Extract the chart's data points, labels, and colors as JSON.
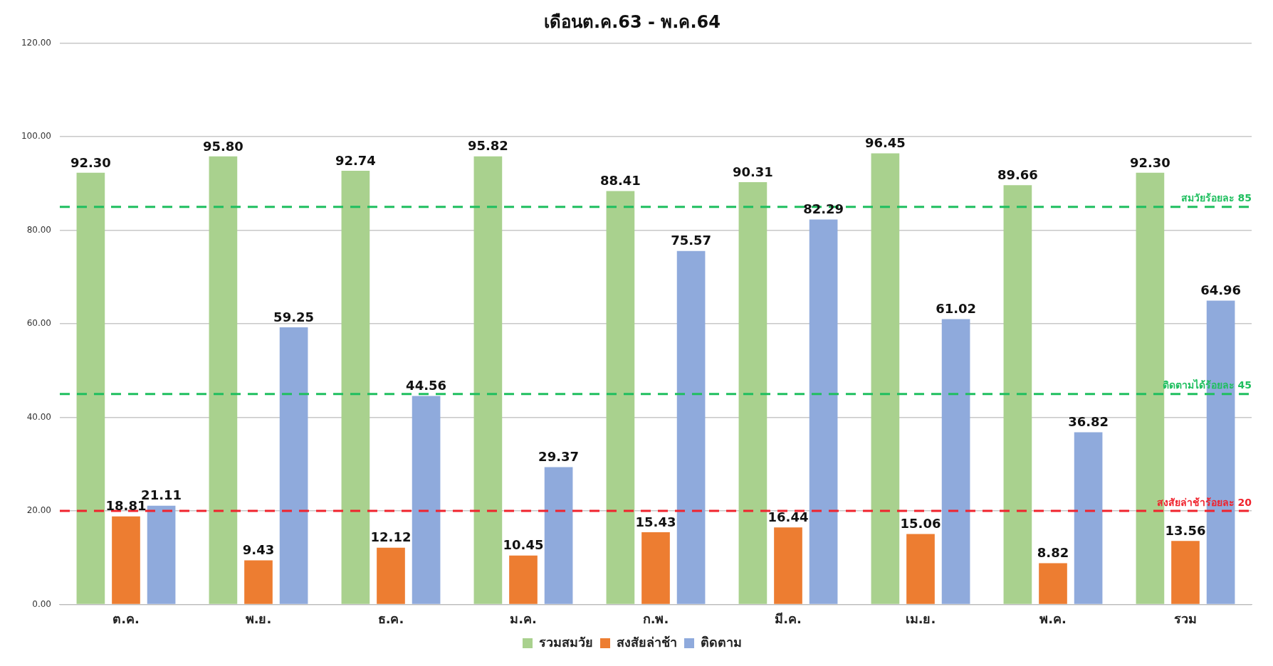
{
  "chart_data": {
    "type": "bar",
    "title": "เดือนต.ค.63 - พ.ค.64",
    "categories": [
      "ต.ค.",
      "พ.ย.",
      "ธ.ค.",
      "ม.ค.",
      "ก.พ.",
      "มี.ค.",
      "เม.ย.",
      "พ.ค.",
      "รวม"
    ],
    "series": [
      {
        "name": "รวมสมวัย",
        "color": "#a9d18e",
        "values": [
          92.3,
          95.8,
          92.74,
          95.82,
          88.41,
          90.31,
          96.45,
          89.66,
          92.3
        ],
        "value_labels": [
          "92.30",
          "95.80",
          "92.74",
          "95.82",
          "88.41",
          "90.31",
          "96.45",
          "89.66",
          "92.30"
        ]
      },
      {
        "name": "สงสัยล่าช้า",
        "color": "#ed7d31",
        "values": [
          18.81,
          9.43,
          12.12,
          10.45,
          15.43,
          16.44,
          15.06,
          8.82,
          13.56
        ],
        "value_labels": [
          "18.81",
          "9.43",
          "12.12",
          "10.45",
          "15.43",
          "16.44",
          "15.06",
          "8.82",
          "13.56"
        ]
      },
      {
        "name": "ติดตาม",
        "color": "#8faadc",
        "values": [
          21.11,
          59.25,
          44.56,
          29.37,
          75.57,
          82.29,
          61.02,
          36.82,
          64.96
        ],
        "value_labels": [
          "21.11",
          "59.25",
          "44.56",
          "29.37",
          "75.57",
          "82.29",
          "61.02",
          "36.82",
          "64.96"
        ]
      }
    ],
    "ylim": [
      0,
      120
    ],
    "yticks": [
      {
        "value": 0,
        "label": "0.00"
      },
      {
        "value": 20,
        "label": "20.00"
      },
      {
        "value": 40,
        "label": "40.00"
      },
      {
        "value": 60,
        "label": "60.00"
      },
      {
        "value": 80,
        "label": "80.00"
      },
      {
        "value": 100,
        "label": "100.00"
      },
      {
        "value": 120,
        "label": "120.00"
      }
    ],
    "grid": "y",
    "legend": "bottom",
    "ref_lines": [
      {
        "axis": "y",
        "value": 85,
        "label": "สมวัยร้อยละ 85",
        "color": "#1fbf5f",
        "line_style": "dashed"
      },
      {
        "axis": "y",
        "value": 45,
        "label": "ติดตามได้ร้อยละ 45",
        "color": "#1fbf5f",
        "line_style": "dashed"
      },
      {
        "axis": "y",
        "value": 20,
        "label": "สงสัยล่าช้าร้อยละ 20",
        "color": "#f0232d",
        "line_style": "dashed"
      }
    ]
  }
}
